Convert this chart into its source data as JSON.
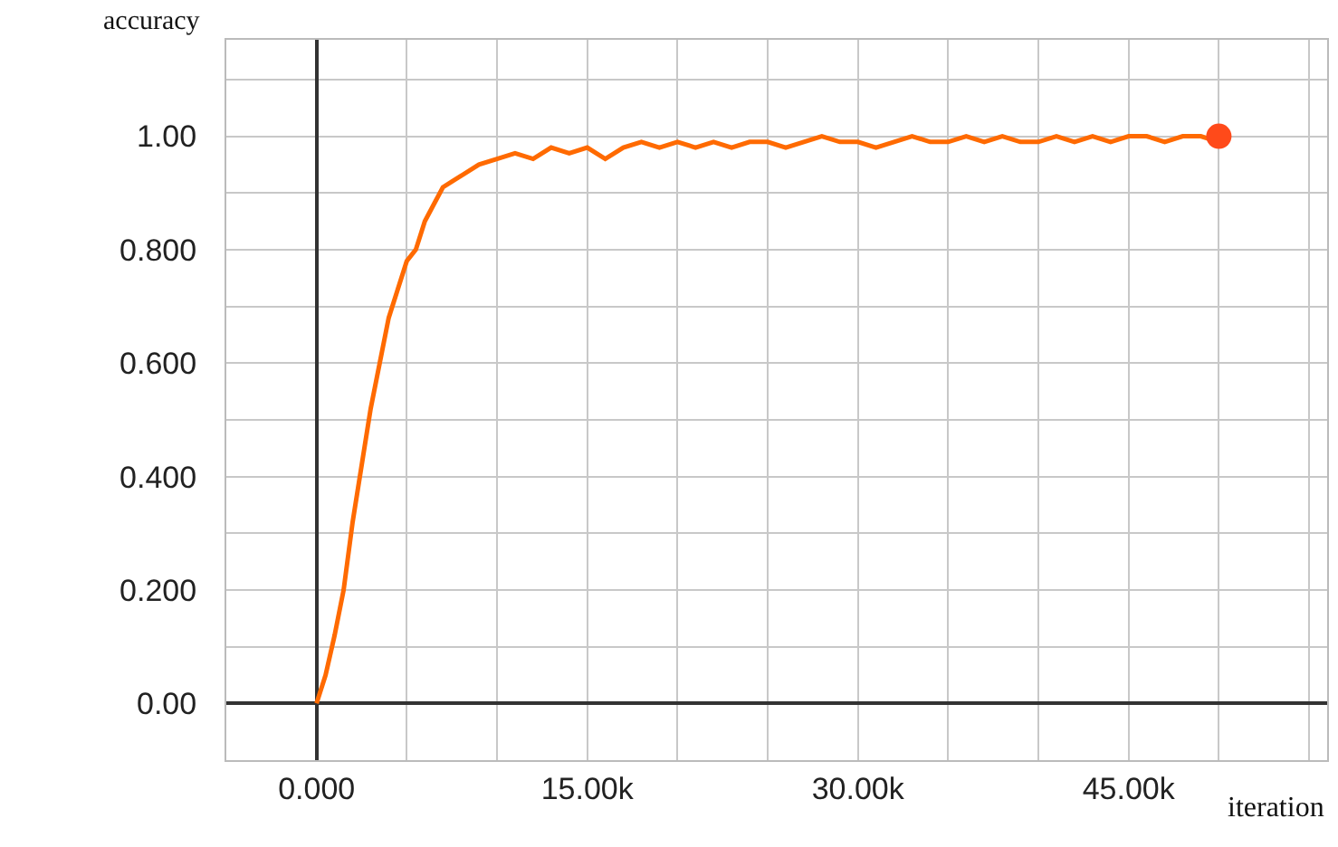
{
  "chart_data": {
    "type": "line",
    "xlabel": "iteration",
    "ylabel": "accuracy",
    "x": [
      0,
      500,
      1000,
      1500,
      2000,
      2500,
      3000,
      3500,
      4000,
      4500,
      5000,
      5500,
      6000,
      6500,
      7000,
      7500,
      8000,
      9000,
      10000,
      11000,
      12000,
      13000,
      14000,
      15000,
      16000,
      17000,
      18000,
      19000,
      20000,
      21000,
      22000,
      23000,
      24000,
      25000,
      26000,
      27000,
      28000,
      29000,
      30000,
      31000,
      32000,
      33000,
      34000,
      35000,
      36000,
      37000,
      38000,
      39000,
      40000,
      41000,
      42000,
      43000,
      44000,
      45000,
      46000,
      47000,
      48000,
      49000,
      50000
    ],
    "series": [
      {
        "color": "#ff6a00",
        "values": [
          0.0,
          0.05,
          0.12,
          0.2,
          0.32,
          0.42,
          0.52,
          0.6,
          0.68,
          0.73,
          0.78,
          0.8,
          0.85,
          0.88,
          0.91,
          0.92,
          0.93,
          0.95,
          0.96,
          0.97,
          0.96,
          0.98,
          0.97,
          0.98,
          0.96,
          0.98,
          0.99,
          0.98,
          0.99,
          0.98,
          0.99,
          0.98,
          0.99,
          0.99,
          0.98,
          0.99,
          1.0,
          0.99,
          0.99,
          0.98,
          0.99,
          1.0,
          0.99,
          0.99,
          1.0,
          0.99,
          1.0,
          0.99,
          0.99,
          1.0,
          0.99,
          1.0,
          0.99,
          1.0,
          1.0,
          0.99,
          1.0,
          1.0,
          0.99
        ]
      },
      {
        "type": "scatter",
        "marker": "circle",
        "color": "#ff4a1a",
        "x": [
          50000
        ],
        "values": [
          1.0
        ]
      }
    ],
    "xlim": [
      -5000,
      56000
    ],
    "ylim": [
      -0.1,
      1.17
    ],
    "xticks": [
      {
        "value": -5000,
        "label": null
      },
      {
        "value": 0,
        "label": "0.000"
      },
      {
        "value": 5000,
        "label": null
      },
      {
        "value": 10000,
        "label": null
      },
      {
        "value": 15000,
        "label": "15.00k"
      },
      {
        "value": 20000,
        "label": null
      },
      {
        "value": 25000,
        "label": null
      },
      {
        "value": 30000,
        "label": "30.00k"
      },
      {
        "value": 35000,
        "label": null
      },
      {
        "value": 40000,
        "label": null
      },
      {
        "value": 45000,
        "label": "45.00k"
      },
      {
        "value": 50000,
        "label": null
      },
      {
        "value": 55000,
        "label": null
      }
    ],
    "yticks": [
      {
        "value": -0.1,
        "label": null
      },
      {
        "value": 0,
        "label": "0.00"
      },
      {
        "value": 0.1,
        "label": null
      },
      {
        "value": 0.2,
        "label": "0.200"
      },
      {
        "value": 0.3,
        "label": null
      },
      {
        "value": 0.4,
        "label": "0.400"
      },
      {
        "value": 0.5,
        "label": null
      },
      {
        "value": 0.6,
        "label": "0.600"
      },
      {
        "value": 0.7,
        "label": null
      },
      {
        "value": 0.8,
        "label": "0.800"
      },
      {
        "value": 0.9,
        "label": null
      },
      {
        "value": 1.0,
        "label": "1.00"
      },
      {
        "value": 1.1,
        "label": null
      }
    ],
    "grid": true,
    "marker": "none",
    "line_style": "solid"
  }
}
